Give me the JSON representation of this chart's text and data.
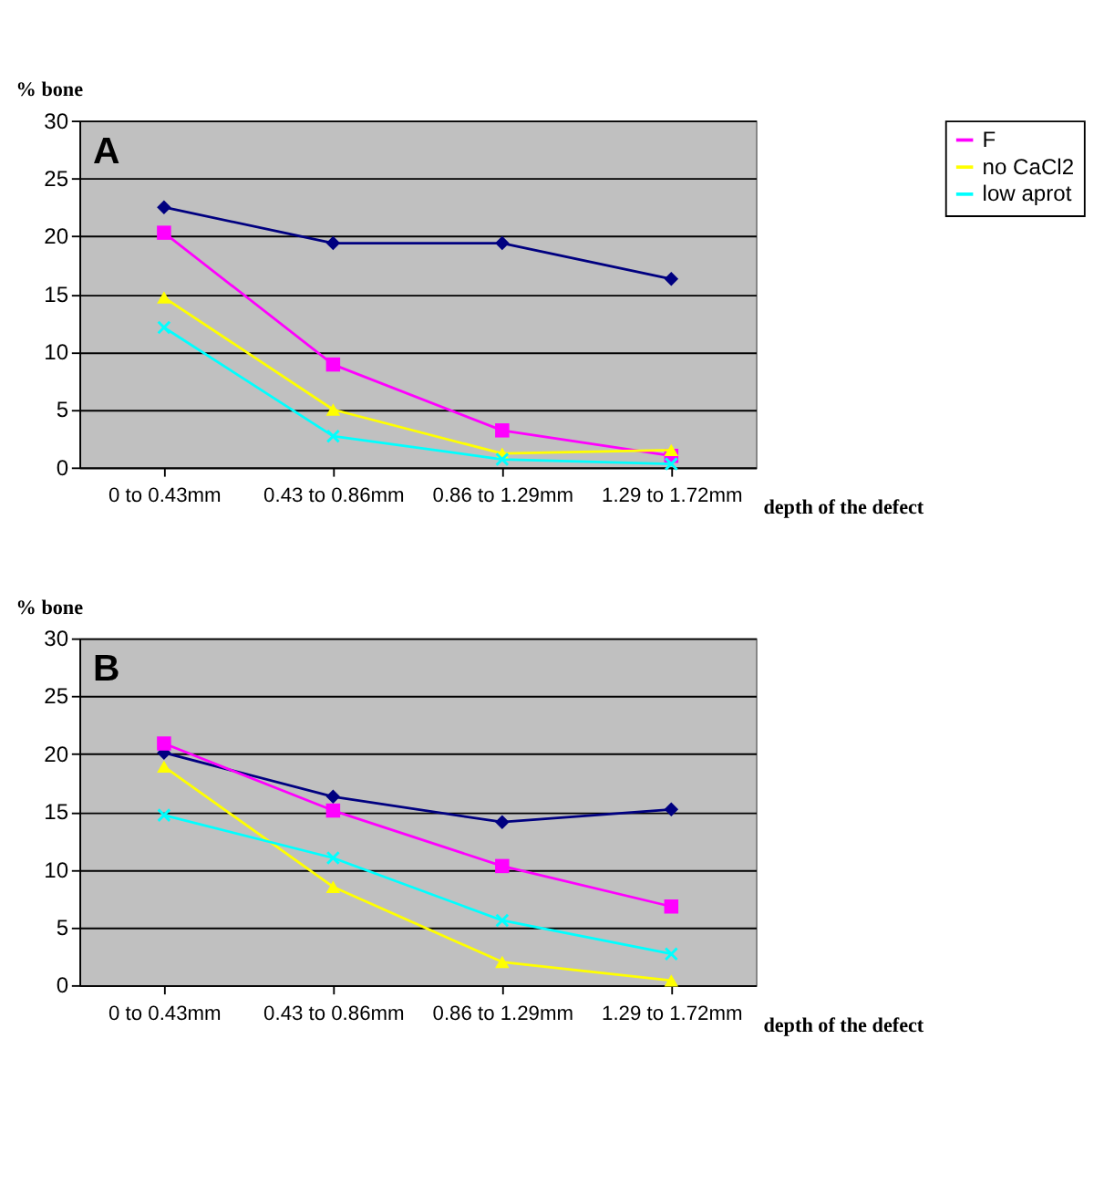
{
  "chart_data": [
    {
      "type": "line",
      "annotations": [
        "A"
      ],
      "ylabel": "% bone",
      "xlabel": "depth of the defect",
      "categories": [
        "0 to 0.43mm",
        "0.43 to 0.86mm",
        "0.86 to 1.29mm",
        "1.29 to 1.72mm"
      ],
      "ylim": [
        0,
        30
      ],
      "yticks": [
        0,
        5,
        10,
        15,
        20,
        25,
        30
      ],
      "grid": "y",
      "legend": "right",
      "series": [
        {
          "color": "#000080",
          "marker": "diamond",
          "values": [
            22.5,
            19.4,
            19.4,
            16.3
          ]
        },
        {
          "name": "F",
          "color": "#ff00ff",
          "marker": "square",
          "values": [
            20.3,
            8.9,
            3.2,
            1.0
          ]
        },
        {
          "name": "no CaCl2",
          "color": "#ffff00",
          "marker": "triangle",
          "values": [
            14.7,
            5.0,
            1.2,
            1.5
          ]
        },
        {
          "name": "low aprot",
          "color": "#00ffff",
          "marker": "cross",
          "values": [
            12.1,
            2.7,
            0.7,
            0.3
          ]
        }
      ]
    },
    {
      "type": "line",
      "annotations": [
        "B"
      ],
      "ylabel": "% bone",
      "xlabel": "depth of the defect",
      "categories": [
        "0 to 0.43mm",
        "0.43 to 0.86mm",
        "0.86 to 1.29mm",
        "1.29 to 1.72mm"
      ],
      "ylim": [
        0,
        30
      ],
      "yticks": [
        0,
        5,
        10,
        15,
        20,
        25,
        30
      ],
      "grid": "y",
      "legend": "right",
      "series": [
        {
          "color": "#000080",
          "marker": "diamond",
          "values": [
            20.1,
            16.3,
            14.1,
            15.2
          ]
        },
        {
          "name": "F",
          "color": "#ff00ff",
          "marker": "square",
          "values": [
            20.9,
            15.1,
            10.3,
            6.8
          ]
        },
        {
          "name": "no CaCl2",
          "color": "#ffff00",
          "marker": "triangle",
          "values": [
            18.9,
            8.5,
            2.0,
            0.4
          ]
        },
        {
          "name": "low aprot",
          "color": "#00ffff",
          "marker": "cross",
          "values": [
            14.7,
            11.0,
            5.6,
            2.7
          ]
        }
      ]
    }
  ]
}
